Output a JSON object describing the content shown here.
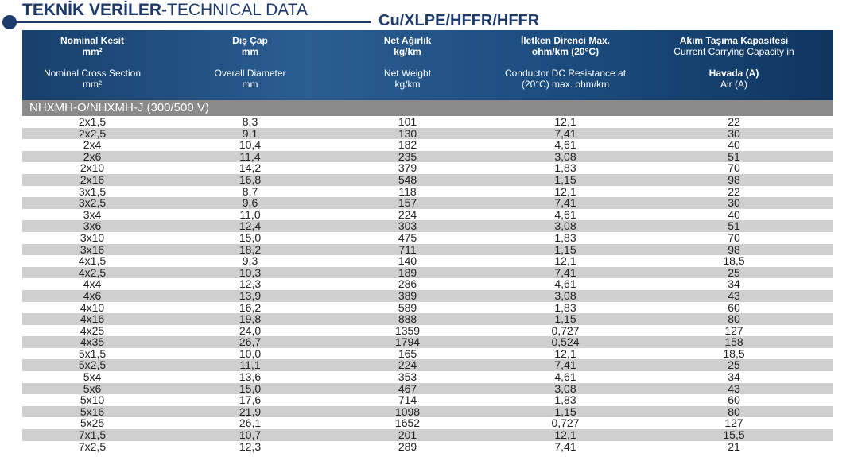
{
  "title": {
    "bold": "TEKNİK VERİLER-",
    "regular": "TECHNICAL DATA"
  },
  "subtitle": "Cu/XLPE/HFFR/HFFR",
  "columns": [
    {
      "tr_title": "Nominal Kesit",
      "tr_unit": "mm²",
      "en_title": "Nominal Cross Section",
      "en_unit": "mm²"
    },
    {
      "tr_title": "Dış Çap",
      "tr_unit": "mm",
      "en_title": "Overall Diameter",
      "en_unit": "mm"
    },
    {
      "tr_title": "Net Ağırlık",
      "tr_unit": "kg/km",
      "en_title": "Net Weight",
      "en_unit": "kg/km"
    },
    {
      "tr_title": "İletken Direnci Max.",
      "tr_unit": "ohm/km (20°C)",
      "en_title": "Conductor DC Resistance at",
      "en_unit": "(20°C) max. ohm/km"
    },
    {
      "tr_title": "Akım Taşıma Kapasitesi",
      "tr_unit": "Current Carrying Capacity in",
      "en_title": "Havada (A)",
      "en_unit": "Air (A)"
    }
  ],
  "section": "NHXMH-O/NHXMH-J (300/500 V)",
  "rows": [
    [
      "2x1,5",
      "8,3",
      "101",
      "12,1",
      "22"
    ],
    [
      "2x2,5",
      "9,1",
      "130",
      "7,41",
      "30"
    ],
    [
      "2x4",
      "10,4",
      "182",
      "4,61",
      "40"
    ],
    [
      "2x6",
      "11,4",
      "235",
      "3,08",
      "51"
    ],
    [
      "2x10",
      "14,2",
      "379",
      "1,83",
      "70"
    ],
    [
      "2x16",
      "16,8",
      "548",
      "1,15",
      "98"
    ],
    [
      "3x1,5",
      "8,7",
      "118",
      "12,1",
      "22"
    ],
    [
      "3x2,5",
      "9,6",
      "157",
      "7,41",
      "30"
    ],
    [
      "3x4",
      "11,0",
      "224",
      "4,61",
      "40"
    ],
    [
      "3x6",
      "12,4",
      "303",
      "3,08",
      "51"
    ],
    [
      "3x10",
      "15,0",
      "475",
      "1,83",
      "70"
    ],
    [
      "3x16",
      "18,2",
      "711",
      "1,15",
      "98"
    ],
    [
      "4x1,5",
      "9,3",
      "140",
      "12,1",
      "18,5"
    ],
    [
      "4x2,5",
      "10,3",
      "189",
      "7,41",
      "25"
    ],
    [
      "4x4",
      "12,3",
      "286",
      "4,61",
      "34"
    ],
    [
      "4x6",
      "13,9",
      "389",
      "3,08",
      "43"
    ],
    [
      "4x10",
      "16,2",
      "589",
      "1,83",
      "60"
    ],
    [
      "4x16",
      "19,8",
      "888",
      "1,15",
      "80"
    ],
    [
      "4x25",
      "24,0",
      "1359",
      "0,727",
      "127"
    ],
    [
      "4x35",
      "26,7",
      "1794",
      "0,524",
      "158"
    ],
    [
      "5x1,5",
      "10,0",
      "165",
      "12,1",
      "18,5"
    ],
    [
      "5x2,5",
      "11,1",
      "224",
      "7,41",
      "25"
    ],
    [
      "5x4",
      "13,6",
      "353",
      "4,61",
      "34"
    ],
    [
      "5x6",
      "15,0",
      "467",
      "3,08",
      "43"
    ],
    [
      "5x10",
      "17,6",
      "714",
      "1,83",
      "60"
    ],
    [
      "5x16",
      "21,9",
      "1098",
      "1,15",
      "80"
    ],
    [
      "5x25",
      "26,1",
      "1652",
      "0,727",
      "127"
    ],
    [
      "7x1,5",
      "10,7",
      "201",
      "12,1",
      "15,5"
    ],
    [
      "7x2,5",
      "12,3",
      "289",
      "7,41",
      "21"
    ]
  ],
  "colors": {
    "brand": "#1d3a6c",
    "section_bg": "#8a8a8a",
    "stripe": "#cfcfcf"
  }
}
